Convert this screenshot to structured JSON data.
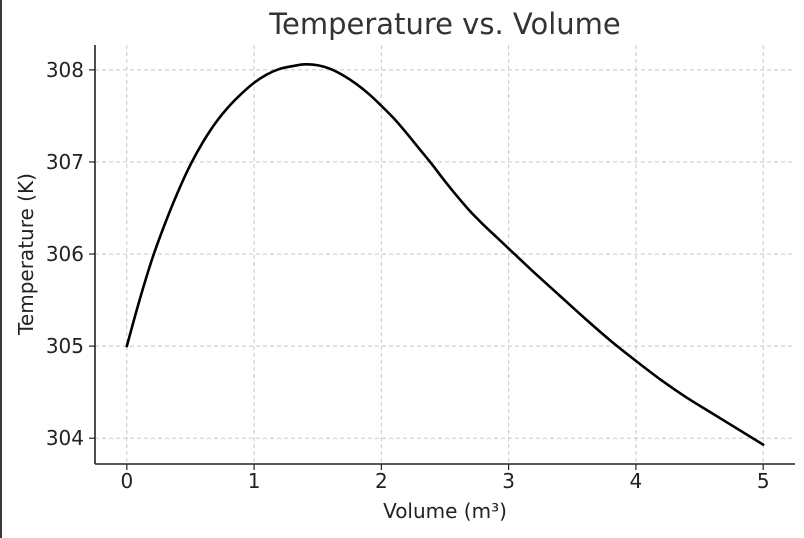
{
  "chart_data": {
    "type": "line",
    "title": "Temperature vs. Volume",
    "xlabel": "Volume (m³)",
    "ylabel": "Temperature (K)",
    "xlim": [
      -0.25,
      5.25
    ],
    "ylim": [
      303.72,
      308.27
    ],
    "xticks": [
      0,
      1,
      2,
      3,
      4,
      5
    ],
    "yticks": [
      304,
      305,
      306,
      307,
      308
    ],
    "grid": true,
    "series": [
      {
        "color": "#000000",
        "x": [
          0,
          0.1,
          0.2,
          0.3,
          0.4,
          0.5,
          0.6,
          0.7,
          0.8,
          0.9,
          1.0,
          1.1,
          1.2,
          1.3,
          1.4,
          1.5,
          1.6,
          1.7,
          1.8,
          1.9,
          2.0,
          2.1,
          2.2,
          2.3,
          2.4,
          2.5,
          2.6,
          2.7,
          2.8,
          2.9,
          3.0,
          3.2,
          3.4,
          3.6,
          3.8,
          4.0,
          4.2,
          4.4,
          4.6,
          4.8,
          5.0
        ],
        "y": [
          305.0,
          305.5,
          305.95,
          306.33,
          306.67,
          306.97,
          307.22,
          307.43,
          307.6,
          307.74,
          307.86,
          307.95,
          308.01,
          308.04,
          308.06,
          308.05,
          308.01,
          307.94,
          307.85,
          307.74,
          307.61,
          307.47,
          307.31,
          307.14,
          306.97,
          306.79,
          306.62,
          306.46,
          306.32,
          306.19,
          306.06,
          305.8,
          305.55,
          305.3,
          305.06,
          304.84,
          304.63,
          304.44,
          304.27,
          304.1,
          303.93
        ]
      }
    ]
  }
}
